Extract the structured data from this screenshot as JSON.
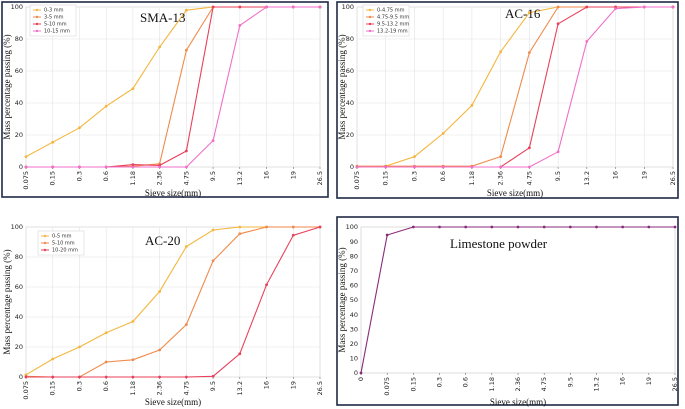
{
  "chart_data": [
    {
      "type": "line",
      "title": "SMA-13",
      "xlabel": "Sieve size(mm)",
      "ylabel": "Mass percentage passing (%)",
      "ylim": [
        0,
        100
      ],
      "yticks": [
        "0",
        "20",
        "40",
        "60",
        "80",
        "100"
      ],
      "categories": [
        "0.075",
        "0.15",
        "0.3",
        "0.6",
        "1.18",
        "2.36",
        "4.75",
        "9.5",
        "13.2",
        "16",
        "19",
        "26.5"
      ],
      "legend_position": "top-left",
      "grid": true,
      "series": [
        {
          "name": "0-3 mm",
          "color": "#f4b63f",
          "values": [
            6.5,
            15.5,
            24.5,
            38,
            49,
            75,
            98,
            100,
            100,
            100,
            100,
            100
          ]
        },
        {
          "name": "3-5 mm",
          "color": "#f08a4b",
          "values": [
            0,
            0,
            0,
            0,
            0.5,
            2,
            73,
            100,
            100,
            100,
            100,
            100
          ]
        },
        {
          "name": "5-10 mm",
          "color": "#e8405a",
          "values": [
            0,
            0,
            0,
            0,
            1.5,
            1,
            10,
            100,
            100,
            100,
            100,
            100
          ]
        },
        {
          "name": "10-15 mm",
          "color": "#f06fc8",
          "values": [
            0,
            0,
            0,
            0,
            0,
            0,
            0,
            16.5,
            88.5,
            100,
            100,
            100
          ]
        }
      ]
    },
    {
      "type": "line",
      "title": "AC-16",
      "xlabel": "Sieve size(mm)",
      "ylabel": "Mass percentage passing (%)",
      "ylim": [
        0,
        100
      ],
      "yticks": [
        "0",
        "20",
        "40",
        "60",
        "80",
        "100"
      ],
      "categories": [
        "0.075",
        "0.15",
        "0.3",
        "0.6",
        "1.18",
        "2.36",
        "4.75",
        "9.5",
        "13.2",
        "16",
        "19",
        "26.5"
      ],
      "legend_position": "top-left",
      "grid": true,
      "series": [
        {
          "name": "0-4.75 mm",
          "color": "#f4b63f",
          "values": [
            0,
            0.5,
            6.5,
            21,
            38.5,
            72,
            96.5,
            100,
            100,
            100,
            100,
            100
          ]
        },
        {
          "name": "4.75-9.5 mm",
          "color": "#f08a4b",
          "values": [
            0.5,
            0.5,
            0.5,
            0.5,
            0.5,
            6.5,
            71.5,
            100,
            100,
            100,
            100,
            100
          ]
        },
        {
          "name": "9.5-13.2 mm",
          "color": "#e8405a",
          "values": [
            0,
            0,
            0,
            0,
            0,
            0,
            12,
            89.5,
            100,
            100,
            100,
            100
          ]
        },
        {
          "name": "13.2-19 mm",
          "color": "#f06fc8",
          "values": [
            0,
            0,
            0,
            0,
            0,
            0,
            0,
            9.5,
            78.5,
            99,
            100,
            100
          ]
        }
      ]
    },
    {
      "type": "line",
      "title": "AC-20",
      "xlabel": "Sieve size(mm)",
      "ylabel": "Mass percentage passing (%)",
      "ylim": [
        0,
        100
      ],
      "yticks": [
        "0",
        "20",
        "40",
        "60",
        "80",
        "100"
      ],
      "categories": [
        "0.075",
        "0.15",
        "0.3",
        "0.6",
        "1.18",
        "2.36",
        "4.75",
        "9.5",
        "13.2",
        "16",
        "19",
        "26.5"
      ],
      "legend_position": "top-left",
      "grid": true,
      "series": [
        {
          "name": "0-5 mm",
          "color": "#f4b63f",
          "values": [
            1.5,
            12,
            20,
            29.5,
            37,
            57,
            87,
            98,
            100,
            100,
            100,
            100
          ]
        },
        {
          "name": "5-10 mm",
          "color": "#f08a4b",
          "values": [
            0.5,
            0,
            0,
            10,
            11.5,
            18,
            35,
            77.5,
            95.5,
            100,
            100,
            100
          ]
        },
        {
          "name": "10-20 mm",
          "color": "#e8405a",
          "values": [
            0,
            0,
            0,
            0,
            0,
            0,
            0,
            0.5,
            15.5,
            61.5,
            94.5,
            100
          ]
        }
      ]
    },
    {
      "type": "line",
      "title": "Limestone powder",
      "xlabel": "Sieve size(mm)",
      "ylabel": "Mass percentage passing (%)",
      "ylim": [
        0,
        100
      ],
      "yticks": [
        "0",
        "10",
        "20",
        "30",
        "40",
        "50",
        "60",
        "70",
        "80",
        "90",
        "100"
      ],
      "categories": [
        "0",
        "0.075",
        "0.15",
        "0.3",
        "0.6",
        "1.18",
        "2.36",
        "4.75",
        "9.5",
        "13.2",
        "16",
        "19",
        "26.5"
      ],
      "grid": false,
      "series": [
        {
          "color": "#8a2a7a",
          "values": [
            0,
            94.5,
            100,
            100,
            100,
            100,
            100,
            100,
            100,
            100,
            100,
            100,
            100
          ]
        }
      ]
    }
  ]
}
